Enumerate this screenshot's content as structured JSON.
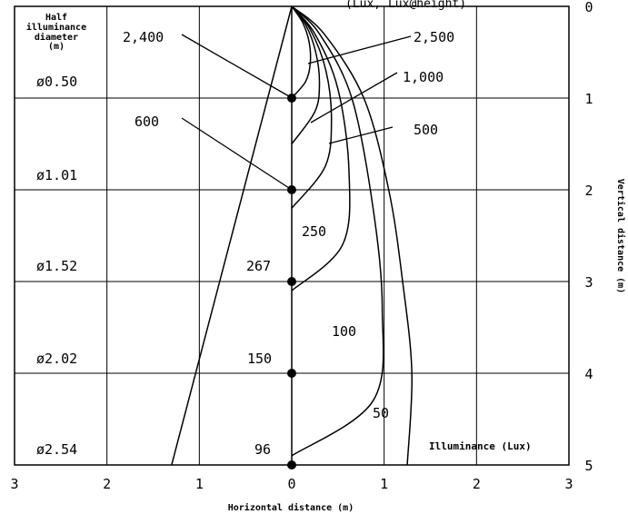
{
  "chart_data": {
    "type": "line",
    "title": "",
    "xlabel": "Horizontal distance (m)",
    "ylabel": "Vertical distance (m)",
    "xlim": [
      -3,
      3
    ],
    "ylim": [
      0,
      5
    ],
    "y_inverted": true,
    "grid": true,
    "x_tick_labels": [
      "3",
      "2",
      "1",
      "0",
      "1",
      "2",
      "3"
    ],
    "y_tick_labels": [
      "0",
      "1",
      "2",
      "3",
      "4",
      "5"
    ],
    "legend_title": "Illuminance (Lux)",
    "header_title": "Half illuminance diameter (m)",
    "top_text": "(Lux, Lux@height)",
    "half_diameters": [
      "ø0.50",
      "ø1.01",
      "ø1.52",
      "ø2.02",
      "ø2.54"
    ],
    "center_values": [
      {
        "label": "2,400",
        "y": 1
      },
      {
        "label": "600",
        "y": 2
      },
      {
        "label": "267",
        "y": 3
      },
      {
        "label": "150",
        "y": 4
      },
      {
        "label": "96",
        "y": 5
      }
    ],
    "beam_edge": [
      [
        0,
        0
      ],
      [
        -1.3,
        5
      ]
    ],
    "series": [
      {
        "name": "2,500",
        "points": [
          [
            0,
            0
          ],
          [
            0.12,
            0.18
          ],
          [
            0.19,
            0.4
          ],
          [
            0.2,
            0.63
          ],
          [
            0.15,
            0.82
          ],
          [
            0,
            1.0
          ]
        ]
      },
      {
        "name": "1,000",
        "points": [
          [
            0,
            0
          ],
          [
            0.15,
            0.2
          ],
          [
            0.26,
            0.5
          ],
          [
            0.3,
            0.85
          ],
          [
            0.25,
            1.15
          ],
          [
            0,
            1.5
          ]
        ]
      },
      {
        "name": "500",
        "points": [
          [
            0,
            0
          ],
          [
            0.2,
            0.25
          ],
          [
            0.37,
            0.7
          ],
          [
            0.43,
            1.25
          ],
          [
            0.36,
            1.75
          ],
          [
            0,
            2.2
          ]
        ]
      },
      {
        "name": "250",
        "points": [
          [
            0,
            0
          ],
          [
            0.25,
            0.3
          ],
          [
            0.5,
            0.9
          ],
          [
            0.62,
            1.8
          ],
          [
            0.55,
            2.6
          ],
          [
            0,
            3.1
          ]
        ]
      },
      {
        "name": "100",
        "points": [
          [
            0,
            0
          ],
          [
            0.3,
            0.3
          ],
          [
            0.65,
            1.0
          ],
          [
            0.88,
            2.2
          ],
          [
            0.98,
            3.3
          ],
          [
            0.88,
            4.3
          ],
          [
            0,
            4.9
          ]
        ]
      },
      {
        "name": "50",
        "points": [
          [
            0,
            0
          ],
          [
            0.35,
            0.3
          ],
          [
            0.78,
            1.0
          ],
          [
            1.05,
            2.0
          ],
          [
            1.2,
            3.0
          ],
          [
            1.3,
            4.0
          ],
          [
            1.25,
            5.0
          ]
        ]
      }
    ],
    "annotations": [
      "2,400",
      "600",
      "2,500",
      "1,000",
      "500",
      "250",
      "267",
      "100",
      "150",
      "50",
      "96"
    ]
  }
}
